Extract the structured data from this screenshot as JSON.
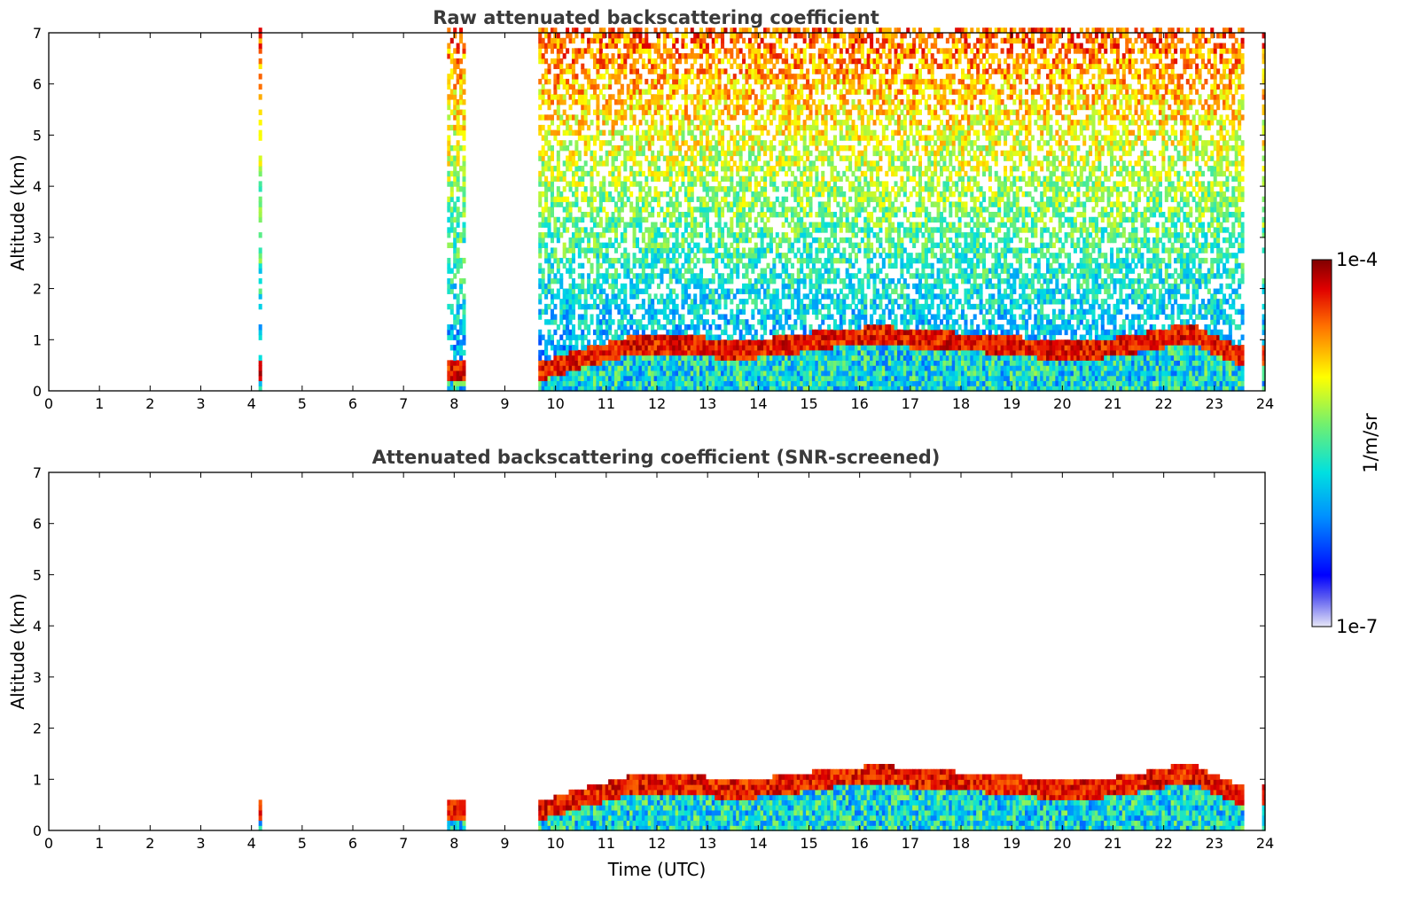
{
  "chart_data": [
    {
      "type": "heatmap",
      "title": "Raw attenuated backscattering coefficient",
      "xlabel": "",
      "ylabel": "Altitude (km)",
      "xlim": [
        0,
        24
      ],
      "ylim": [
        0,
        7
      ],
      "x_ticks": [
        0,
        1,
        2,
        3,
        4,
        5,
        6,
        7,
        8,
        9,
        10,
        11,
        12,
        13,
        14,
        15,
        16,
        17,
        18,
        19,
        20,
        21,
        22,
        23,
        24
      ],
      "y_ticks": [
        0,
        1,
        2,
        3,
        4,
        5,
        6,
        7
      ],
      "data_segments": [
        {
          "start": 4.12,
          "end": 4.18
        },
        {
          "start": 7.87,
          "end": 8.2
        },
        {
          "start": 9.68,
          "end": 23.6
        },
        {
          "start": 23.95,
          "end": 24.0
        }
      ],
      "boundary_layer_top_km": [
        {
          "time": 9.7,
          "alt": 0.45
        },
        {
          "time": 10.5,
          "alt": 0.7
        },
        {
          "time": 11.5,
          "alt": 0.95
        },
        {
          "time": 12.5,
          "alt": 1.0
        },
        {
          "time": 13.5,
          "alt": 0.85
        },
        {
          "time": 14.5,
          "alt": 0.95
        },
        {
          "time": 15.5,
          "alt": 1.1
        },
        {
          "time": 16.5,
          "alt": 1.15
        },
        {
          "time": 17.5,
          "alt": 1.05
        },
        {
          "time": 18.5,
          "alt": 1.0
        },
        {
          "time": 19.5,
          "alt": 0.9
        },
        {
          "time": 20.5,
          "alt": 0.85
        },
        {
          "time": 21.5,
          "alt": 1.0
        },
        {
          "time": 22.5,
          "alt": 1.2
        },
        {
          "time": 23.5,
          "alt": 0.75
        }
      ]
    },
    {
      "type": "heatmap",
      "title": "Attenuated backscattering coefficient (SNR-screened)",
      "xlabel": "Time (UTC)",
      "ylabel": "Altitude (km)",
      "xlim": [
        0,
        24
      ],
      "ylim": [
        0,
        7
      ],
      "x_ticks": [
        0,
        1,
        2,
        3,
        4,
        5,
        6,
        7,
        8,
        9,
        10,
        11,
        12,
        13,
        14,
        15,
        16,
        17,
        18,
        19,
        20,
        21,
        22,
        23,
        24
      ],
      "y_ticks": [
        0,
        1,
        2,
        3,
        4,
        5,
        6,
        7
      ],
      "data_segments": [
        {
          "start": 4.12,
          "end": 4.18
        },
        {
          "start": 7.87,
          "end": 8.2
        },
        {
          "start": 9.68,
          "end": 23.6
        },
        {
          "start": 23.95,
          "end": 24.0
        }
      ]
    }
  ],
  "colorbar": {
    "max_label": "1e-4",
    "min_label": "1e-7",
    "unit_label": "1/m/sr",
    "scale": "log",
    "colormap": "jet"
  }
}
